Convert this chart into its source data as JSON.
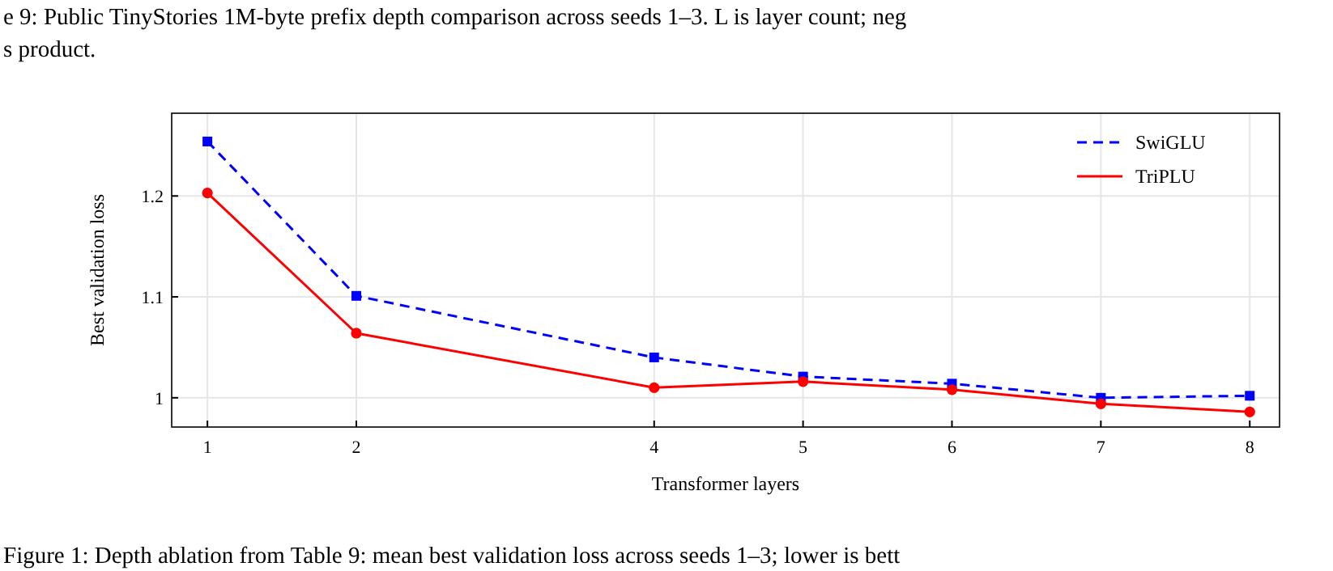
{
  "chart_data": {
    "type": "line",
    "xlabel": "Transformer layers",
    "ylabel": "Best validation loss",
    "x": [
      1,
      2,
      4,
      5,
      6,
      7,
      8
    ],
    "series": [
      {
        "name": "SwiGLU",
        "color": "#0000ff",
        "line_style": "dashed",
        "marker": "square",
        "values": [
          1.254,
          1.101,
          1.04,
          1.021,
          1.014,
          1.0,
          1.002
        ]
      },
      {
        "name": "TriPLU",
        "color": "#ff0000",
        "line_style": "solid",
        "marker": "circle",
        "values": [
          1.203,
          1.064,
          1.01,
          1.016,
          1.008,
          0.994,
          0.986
        ]
      }
    ],
    "xlim": [
      0.76,
      8.2
    ],
    "xticks": [
      1,
      2,
      4,
      5,
      6,
      7,
      8
    ],
    "ylim": [
      0.971,
      1.282
    ],
    "yticks": [
      1,
      1.1,
      1.2
    ],
    "grid": true,
    "legend": "top right",
    "annotations": [
      "e 9: Public TinyStories 1M-byte prefix depth comparison across seeds 1–3. L is layer count; neg",
      "s product.",
      "Figure 1: Depth ablation from Table 9: mean best validation loss across seeds 1–3; lower is bett"
    ]
  }
}
